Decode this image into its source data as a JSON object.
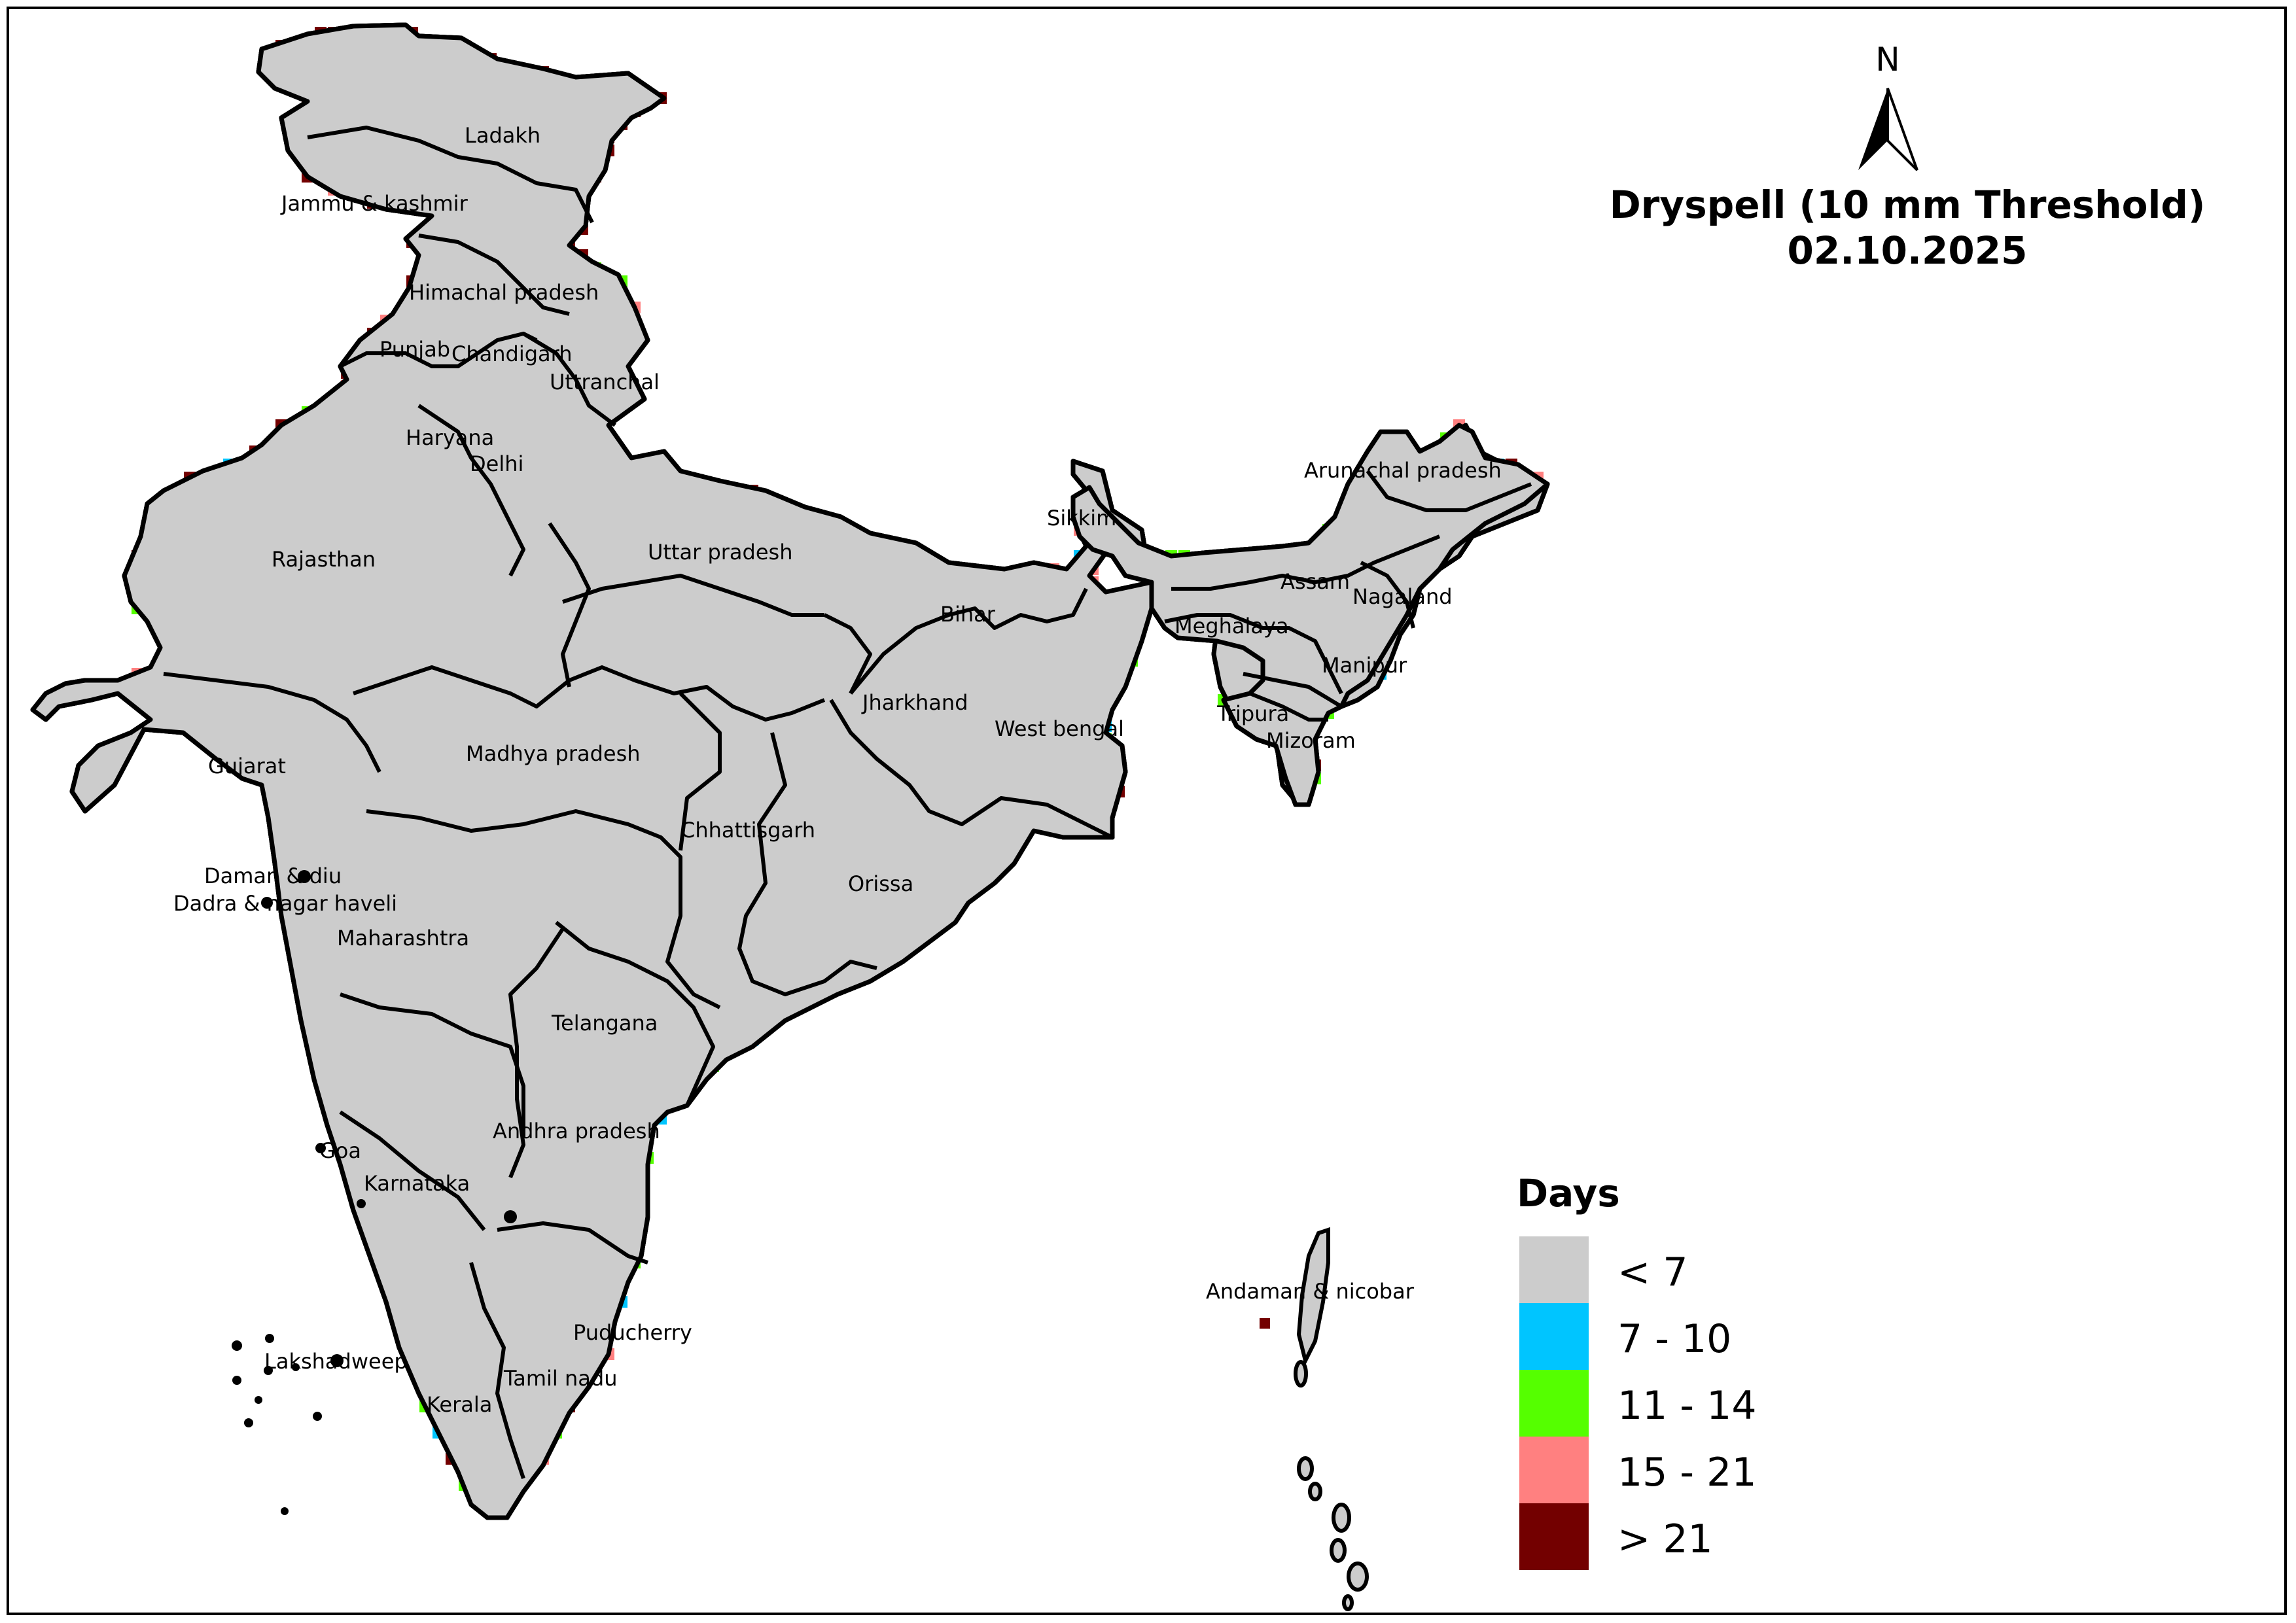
{
  "title": {
    "line1": "Dryspell (10 mm Threshold)",
    "line2": "02.10.2025"
  },
  "north_arrow": {
    "label": "N",
    "icon": "north-arrow-icon"
  },
  "legend": {
    "title": "Days",
    "items": [
      {
        "label": "< 7",
        "color": "#cccccc"
      },
      {
        "label": "7 - 10",
        "color": "#00c5ff"
      },
      {
        "label": "11 - 14",
        "color": "#55ff00"
      },
      {
        "label": "15 - 21",
        "color": "#ff8080"
      },
      {
        "label": "> 21",
        "color": "#730000"
      }
    ]
  },
  "states": [
    "Ladakh",
    "Jammu & kashmir",
    "Himachal pradesh",
    "Punjab",
    "Chandigarh",
    "Uttranchal",
    "Haryana",
    "Delhi",
    "Rajasthan",
    "Uttar pradesh",
    "Sikkim",
    "Arunachal pradesh",
    "Assam",
    "Nagaland",
    "Meghalaya",
    "Bihar",
    "Manipur",
    "Jharkhand",
    "West bengal",
    "Tripura",
    "Mizoram",
    "Gujarat",
    "Madhya pradesh",
    "Chhattisgarh",
    "Orissa",
    "Daman & diu",
    "Dadra & nagar haveli",
    "Maharashtra",
    "Telangana",
    "Andhra pradesh",
    "Goa",
    "Karnataka",
    "Andaman & nicobar",
    "Puducherry",
    "Lakshadweep",
    "Tamil nadu",
    "Kerala"
  ],
  "frame_color": "#000000",
  "grid_line_color": "#ffffff"
}
